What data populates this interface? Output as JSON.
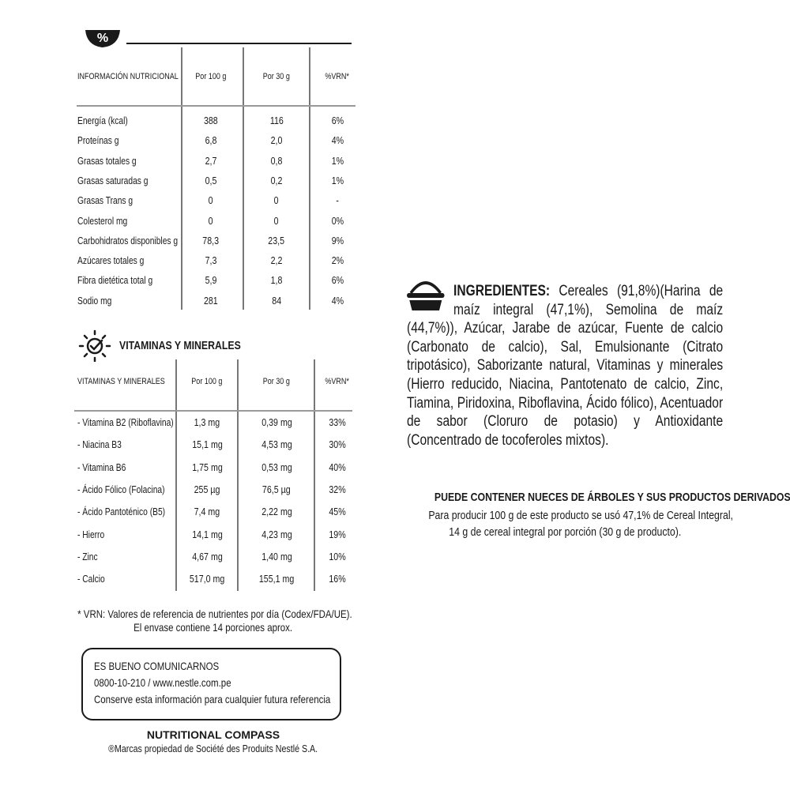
{
  "nutrition": {
    "headers": [
      "INFORMACIÓN NUTRICIONAL",
      "Por 100 g",
      "Por 30 g",
      "%VRN*"
    ],
    "rows": [
      [
        "Energía  (kcal)",
        "388",
        "116",
        "6%"
      ],
      [
        "Proteínas g",
        "6,8",
        "2,0",
        "4%"
      ],
      [
        "Grasas totales g",
        "2,7",
        "0,8",
        "1%"
      ],
      [
        "Grasas saturadas g",
        "0,5",
        "0,2",
        "1%"
      ],
      [
        "Grasas Trans g",
        "0",
        "0",
        "-"
      ],
      [
        "Colesterol mg",
        "0",
        "0",
        "0%"
      ],
      [
        "Carbohidratos disponibles g",
        "78,3",
        "23,5",
        "9%"
      ],
      [
        "Azúcares totales g",
        "7,3",
        "2,2",
        "2%"
      ],
      [
        "Fibra dietética total g",
        "5,9",
        "1,8",
        "6%"
      ],
      [
        "Sodio mg",
        "281",
        "84",
        "4%"
      ]
    ]
  },
  "vitamins": {
    "title": "VITAMINAS Y MINERALES",
    "headers": [
      "VITAMINAS Y MINERALES",
      "Por 100 g",
      "Por 30 g",
      "%VRN*"
    ],
    "rows": [
      [
        "- Vitamina B2 (Riboflavina)",
        "1,3 mg",
        "0,39 mg",
        "33%"
      ],
      [
        "- Niacina B3",
        "15,1 mg",
        "4,53 mg",
        "30%"
      ],
      [
        "- Vitamina B6",
        "1,75 mg",
        "0,53 mg",
        "40%"
      ],
      [
        "- Ácido Fólico (Folacina)",
        "255 µg",
        "76,5 µg",
        "32%"
      ],
      [
        "- Ácido Pantoténico (B5)",
        "7,4 mg",
        "2,22 mg",
        "45%"
      ],
      [
        "- Hierro",
        "14,1 mg",
        "4,23 mg",
        "19%"
      ],
      [
        "- Zinc",
        "4,67 mg",
        "1,40 mg",
        "10%"
      ],
      [
        "- Calcio",
        "517,0 mg",
        "155,1 mg",
        "16%"
      ]
    ]
  },
  "footnote": {
    "line1": "* VRN:  Valores de referencia de nutrientes por día (Codex/FDA/UE).",
    "line2": "El envase contiene 14 porciones aprox."
  },
  "contact": {
    "title": "ES BUENO COMUNICARNOS",
    "phone_web": "0800-10-210  /  www.nestle.com.pe",
    "note": "Conserve esta información para cualquier futura referencia"
  },
  "brand": {
    "title": "NUTRITIONAL COMPASS",
    "trademark": "®Marcas propiedad de Société des Produits Nestlé S.A."
  },
  "ingredients": {
    "label": "INGREDIENTES:",
    "text": " Cereales (91,8%)(Harina de maíz integral (47,1%), Semolina de maíz (44,7%)), Azúcar, Jarabe de azúcar, Fuente de calcio (Carbonato de calcio), Sal, Emulsionante (Citrato tripotásico), Saborizante natural, Vitaminas y minerales (Hierro reducido, Niacina, Pantotenato de calcio, Zinc, Tiamina, Piridoxina, Riboflavina, Ácido fólico), Acentuador de sabor (Cloruro de potasio) y Antioxidante (Concentrado de tocoferoles mixtos)."
  },
  "allergen": {
    "warning": "PUEDE CONTENER NUECES DE ÁRBOLES Y SUS PRODUCTOS DERIVADOS.",
    "line1": "Para producir 100 g de este producto se usó 47,1% de Cereal Integral,",
    "line2": "14 g de cereal integral por porción (30 g de producto)."
  },
  "icons": {
    "percent": "percent-bowl-icon",
    "vitamins": "sun-check-icon",
    "ingredients": "basket-icon"
  }
}
